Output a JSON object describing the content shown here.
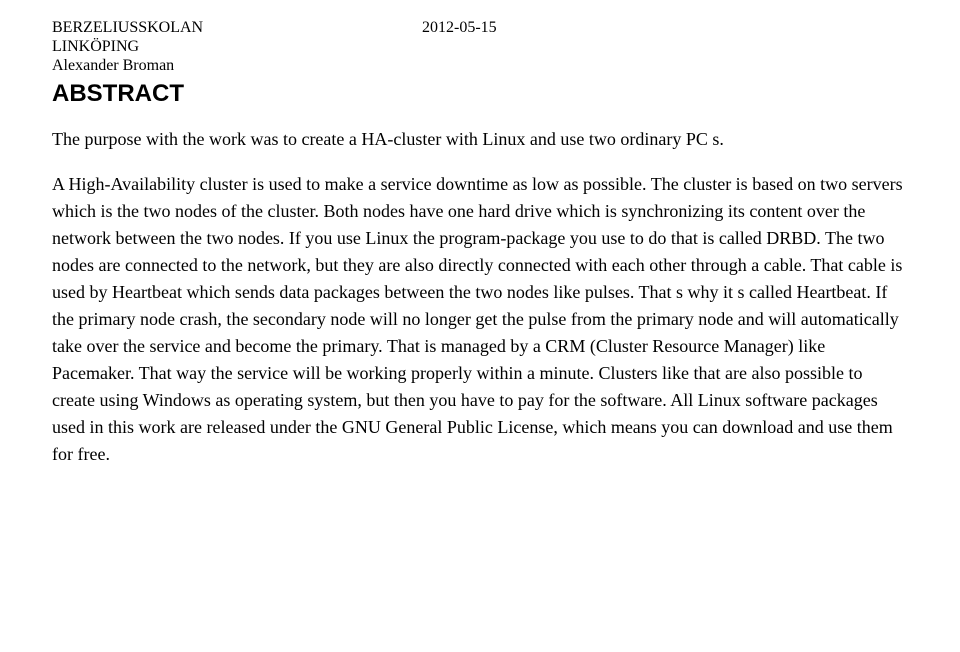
{
  "header": {
    "institution": "BERZELIUSSKOLAN",
    "city": "LINKÖPING",
    "author": "Alexander Broman",
    "date": "2012-05-15"
  },
  "title": "ABSTRACT",
  "paragraph1": "The purpose with the work was to create a HA-cluster with Linux and use two ordinary PC s.",
  "paragraph2": "A High-Availability cluster is used to make a service downtime as low as possible. The cluster is based on two servers which is the two nodes of the cluster. Both nodes have one hard drive which is synchronizing its content over the network between the two nodes. If you use Linux the program-package you use to do that is called DRBD. The two nodes are connected to the network, but they are also directly connected with each other through a cable. That cable is used by Heartbeat which sends data packages between the two nodes like pulses. That s why it s called Heartbeat. If the primary node crash, the secondary node will no longer get the pulse from the primary node and will automatically take over the service and become the primary. That is managed by a CRM (Cluster Resource Manager) like Pacemaker. That way the service will be working properly within a minute. Clusters like that are also possible to create using Windows as operating system, but then you have to pay for the software. All Linux software packages used in this work are released under the GNU General Public License, which means you can download and use them for free."
}
